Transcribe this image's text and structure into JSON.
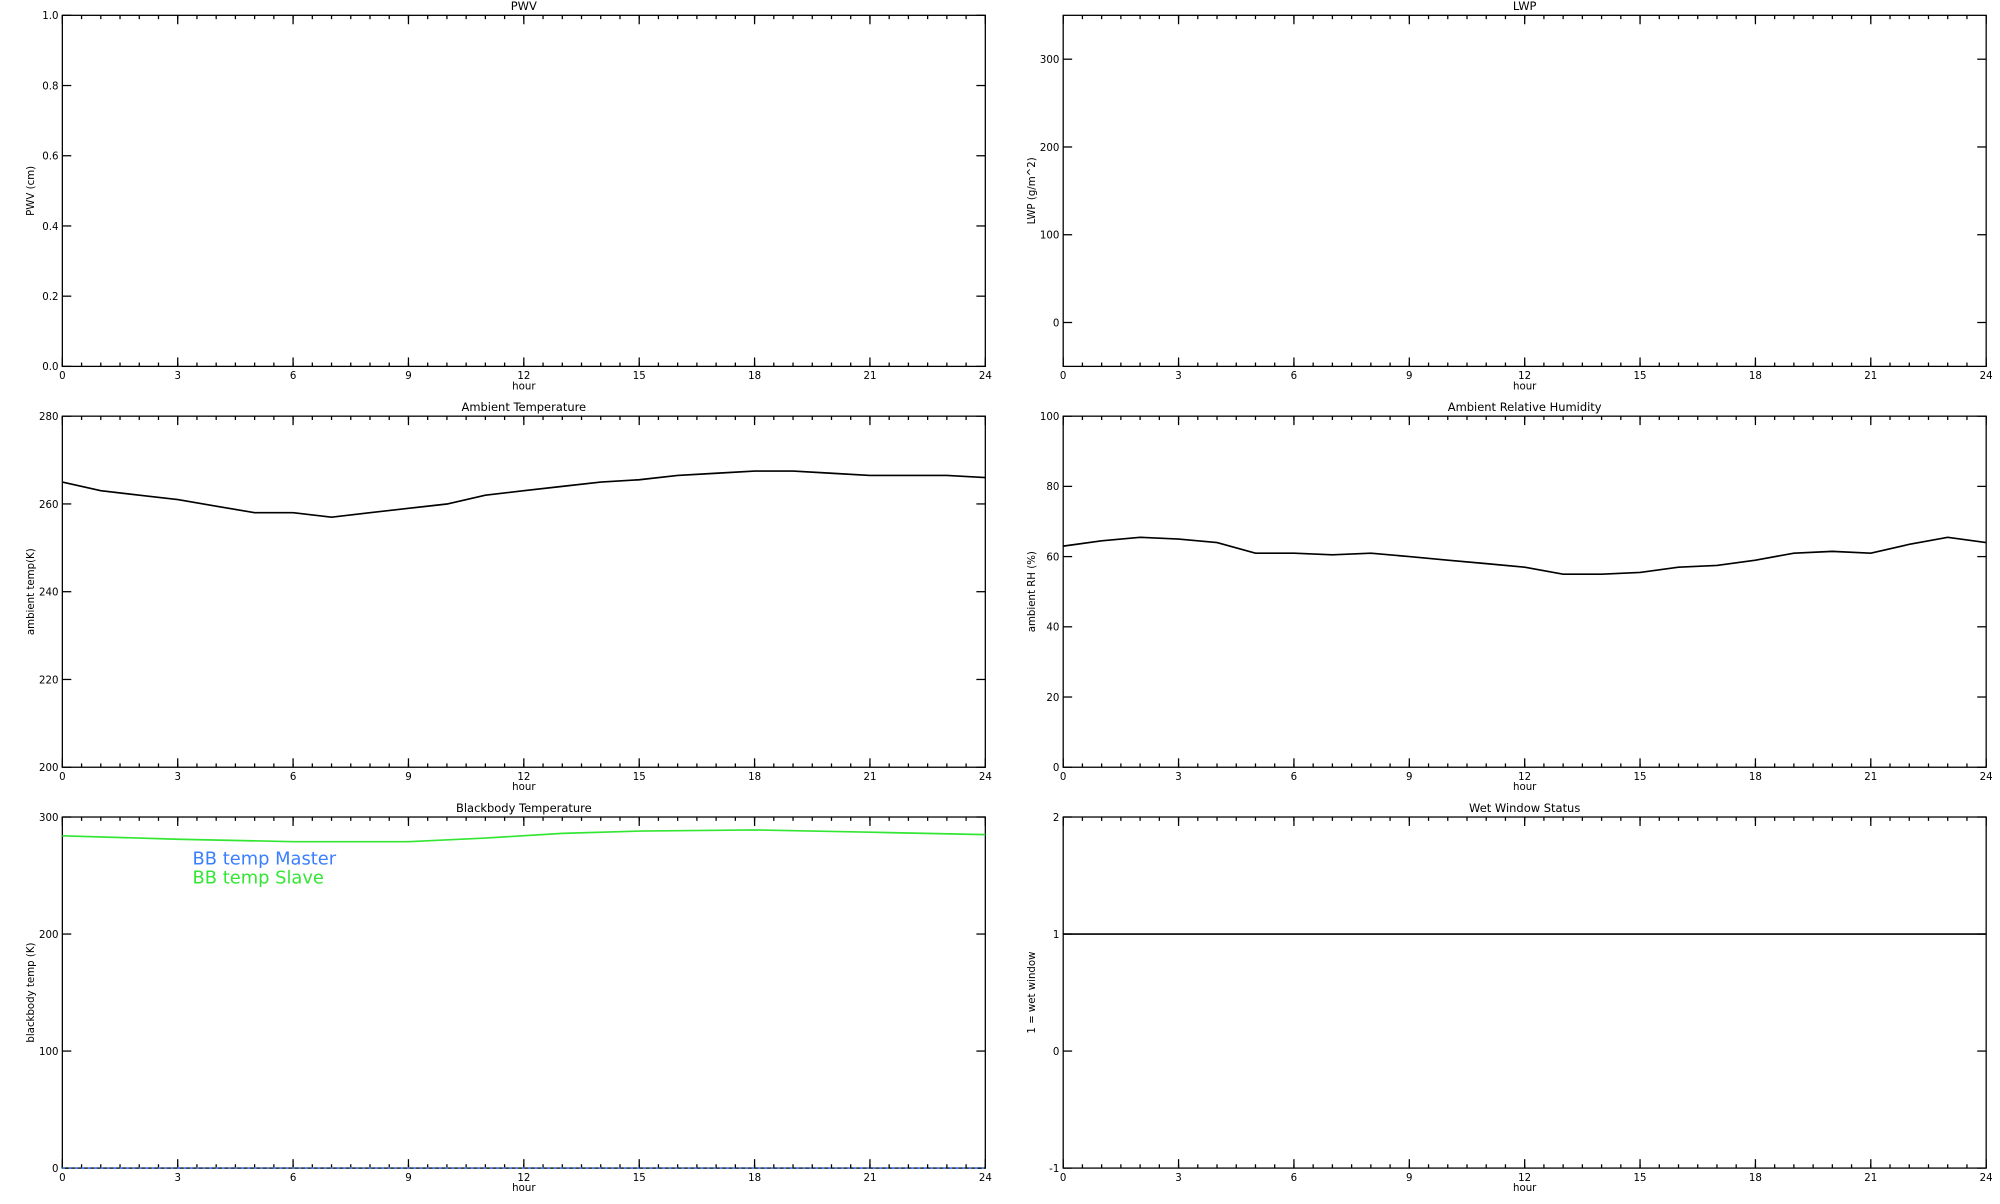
{
  "chart_data": [
    {
      "type": "line",
      "title": "PWV",
      "xlabel": "hour",
      "ylabel": "PWV (cm)",
      "xlim": [
        0,
        24
      ],
      "xticks": [
        0,
        3,
        6,
        9,
        12,
        15,
        18,
        21,
        24
      ],
      "ylim": [
        0,
        1
      ],
      "yticks": [
        {
          "value": 0,
          "label": "0.0"
        },
        {
          "value": 0.2,
          "label": "0.2"
        },
        {
          "value": 0.4,
          "label": "0.4"
        },
        {
          "value": 0.6,
          "label": "0.6"
        },
        {
          "value": 0.8,
          "label": "0.8"
        },
        {
          "value": 1,
          "label": "1.0"
        }
      ]
    },
    {
      "type": "line",
      "title": "LWP",
      "xlabel": "hour",
      "ylabel": "LWP (g/m^2)",
      "xlim": [
        0,
        24
      ],
      "xticks": [
        0,
        3,
        6,
        9,
        12,
        15,
        18,
        21,
        24
      ],
      "ylim": [
        -50,
        350
      ],
      "yticks": [
        0,
        100,
        200,
        300
      ]
    },
    {
      "type": "line",
      "title": "Ambient Temperature",
      "xlabel": "hour",
      "ylabel": "ambient temp(K)",
      "xlim": [
        0,
        24
      ],
      "xticks": [
        0,
        3,
        6,
        9,
        12,
        15,
        18,
        21,
        24
      ],
      "ylim": [
        200,
        280
      ],
      "yticks": [
        200,
        220,
        240,
        260,
        280
      ],
      "x": [
        0,
        1,
        2,
        3,
        4,
        5,
        6,
        7,
        8,
        9,
        10,
        11,
        12,
        13,
        14,
        15,
        16,
        17,
        18,
        19,
        20,
        21,
        22,
        23,
        24
      ],
      "series": [
        {
          "color": "#000000",
          "values": [
            265,
            263,
            262,
            261,
            259.5,
            258,
            258,
            257,
            258,
            259,
            260,
            262,
            263,
            264,
            265,
            265.5,
            266.5,
            267,
            267.5,
            267.5,
            267,
            266.5,
            266.5,
            266.5,
            266
          ]
        }
      ]
    },
    {
      "type": "line",
      "title": "Ambient Relative Humidity",
      "xlabel": "hour",
      "ylabel": "ambient RH (%)",
      "xlim": [
        0,
        24
      ],
      "xticks": [
        0,
        3,
        6,
        9,
        12,
        15,
        18,
        21,
        24
      ],
      "ylim": [
        0,
        100
      ],
      "yticks": [
        0,
        20,
        40,
        60,
        80,
        100
      ],
      "x": [
        0,
        1,
        2,
        3,
        4,
        5,
        6,
        7,
        8,
        9,
        10,
        11,
        12,
        13,
        14,
        15,
        16,
        17,
        18,
        19,
        20,
        21,
        22,
        23,
        24
      ],
      "series": [
        {
          "color": "#000000",
          "values": [
            63,
            64.5,
            65.5,
            65,
            64,
            61,
            61,
            60.5,
            61,
            60,
            59,
            58,
            57,
            55,
            55,
            55.5,
            57,
            57.5,
            59,
            61,
            61.5,
            61,
            63.5,
            65.5,
            64
          ]
        }
      ]
    },
    {
      "type": "line",
      "title": "Blackbody Temperature",
      "xlabel": "hour",
      "ylabel": "blackbody temp (K)",
      "xlim": [
        0,
        24
      ],
      "xticks": [
        0,
        3,
        6,
        9,
        12,
        15,
        18,
        21,
        24
      ],
      "ylim": [
        0,
        300
      ],
      "yticks": [
        0,
        100,
        200,
        300
      ],
      "x": [
        0,
        3,
        6,
        9,
        11,
        13,
        15,
        18,
        21,
        24
      ],
      "series": [
        {
          "name": "BB temp Master",
          "color": "#3a7fff",
          "values": [
            0,
            0,
            0,
            0,
            0,
            0,
            0,
            0,
            0,
            0
          ]
        },
        {
          "name": "BB temp Slave",
          "color": "#33e633",
          "values": [
            284,
            281,
            279,
            279,
            282,
            286,
            288,
            289,
            287,
            285
          ]
        }
      ]
    },
    {
      "type": "line",
      "title": "Wet Window Status",
      "xlabel": "hour",
      "ylabel": "1 = wet window",
      "xlim": [
        0,
        24
      ],
      "xticks": [
        0,
        3,
        6,
        9,
        12,
        15,
        18,
        21,
        24
      ],
      "ylim": [
        -1,
        2
      ],
      "yticks": [
        -1,
        0,
        1,
        2
      ],
      "x": [
        0,
        24
      ],
      "series": [
        {
          "color": "#000000",
          "values": [
            1,
            1
          ]
        }
      ]
    }
  ]
}
